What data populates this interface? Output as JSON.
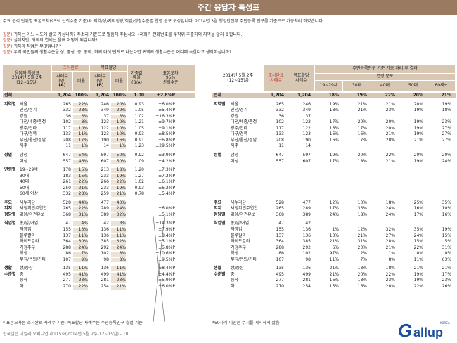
{
  "title": "주간 응답자 특성표",
  "intro": "주요 분석 단위별 표본오차(95% 신뢰수준 기준)와 지역/성/지지정당/직업/생활수준별 연령 분포 구성입니다. 2014년 3월 행정안전부 주민등록 인구를 기준으로 가중처리 하였습니다.",
  "questions": [
    {
      "label": "질문)",
      "text": "귀하는 어느 시도에 살고 계십니까? 주소지 기준으로 말씀해 주십시오. (저희가 전화번호를 무작위 추출하여 지역을 알지 못합니다.)"
    },
    {
      "label": "질문)",
      "text": "실례지만, 귀하의 연세는 올해 어떻게 되십니까?"
    },
    {
      "label": "질문)",
      "text": "귀하의 직업은 무엇입니까?"
    },
    {
      "label": "질문)",
      "text": "우리 국민들의 생활수준을 상, 중상, 중, 중하, 하의 다섯 단계로 나눈다면 귀댁의 생활수준은 어디에 속한다고 생각하십니까?"
    }
  ],
  "left_headers": {
    "group": "응답자 특성표",
    "period": "2014년 5월 2주",
    "dates": "(12~15일)",
    "s1": "조사완료",
    "s1a": "사례수",
    "s1b": "(명)",
    "s1c": "비율",
    "s2": "목표할당",
    "s2a": "사례수",
    "s2b": "(명)",
    "s2c": "비율",
    "s3": "가중값",
    "s3a": "배율",
    "s3b": "(B/A)",
    "s4": "표본오차",
    "s4a": "95%",
    "s4b": "신뢰수준"
  },
  "right_headers": {
    "period": "2014년 5월 2주",
    "dates": "(12~15일)",
    "s1": "조사완료",
    "s1a": "사례수",
    "s2": "목표할당",
    "s2a": "사례수",
    "s3": "주민등록인구 기준 가중 처리 후 결과",
    "s3b": "연령 분포",
    "ages": [
      "19~29세",
      "30대",
      "40대",
      "50대",
      "60세+"
    ]
  },
  "left_rows": [
    {
      "cat": "전체",
      "sub": "",
      "v": [
        "1,204",
        "100%",
        "1,204",
        "100%",
        "1.00",
        "±2.8%P"
      ],
      "tot": true
    },
    {
      "cat": "지역별",
      "sub": "서울",
      "v": [
        "265",
        "22%",
        "246",
        "20%",
        "0.93",
        "±6.0%P"
      ]
    },
    {
      "cat": "",
      "sub": "인천/경기",
      "v": [
        "332",
        "28%",
        "349",
        "29%",
        "1.05",
        "±5.4%P"
      ]
    },
    {
      "cat": "",
      "sub": "강원",
      "v": [
        "36",
        "3%",
        "37",
        "3%",
        "1.02",
        "±16.3%P"
      ]
    },
    {
      "cat": "",
      "sub": "대전/세종/충청",
      "v": [
        "102",
        "8%",
        "123",
        "10%",
        "1.21",
        "±9.7%P"
      ]
    },
    {
      "cat": "",
      "sub": "광주/전라",
      "v": [
        "117",
        "10%",
        "122",
        "10%",
        "1.05",
        "±9.1%P"
      ]
    },
    {
      "cat": "",
      "sub": "대구/경북",
      "v": [
        "133",
        "11%",
        "123",
        "10%",
        "0.93",
        "±8.5%P"
      ]
    },
    {
      "cat": "",
      "sub": "부산/울산/경남",
      "v": [
        "208",
        "17%",
        "190",
        "16%",
        "0.91",
        "±6.8%P"
      ]
    },
    {
      "cat": "",
      "sub": "제주",
      "v": [
        "11",
        "1%",
        "14",
        "1%",
        "1.23",
        "±29.5%P"
      ]
    },
    {
      "cat": "성별",
      "sub": "남성",
      "v": [
        "647",
        "54%",
        "597",
        "50%",
        "0.92",
        "±3.9%P"
      ]
    },
    {
      "cat": "",
      "sub": "여성",
      "v": [
        "557",
        "46%",
        "607",
        "50%",
        "1.09",
        "±4.2%P"
      ]
    },
    {
      "cat": "연령별",
      "sub": "19~29세",
      "v": [
        "178",
        "15%",
        "213",
        "18%",
        "1.20",
        "±7.3%P"
      ]
    },
    {
      "cat": "",
      "sub": "30대",
      "v": [
        "183",
        "15%",
        "233",
        "19%",
        "1.27",
        "±7.2%P"
      ]
    },
    {
      "cat": "",
      "sub": "40대",
      "v": [
        "261",
        "22%",
        "266",
        "22%",
        "1.02",
        "±6.1%P"
      ]
    },
    {
      "cat": "",
      "sub": "50대",
      "v": [
        "250",
        "21%",
        "233",
        "19%",
        "0.93",
        "±6.2%P"
      ]
    },
    {
      "cat": "",
      "sub": "60세 이상",
      "v": [
        "332",
        "28%",
        "259",
        "21%",
        "0.78",
        "±5.4%P"
      ]
    },
    {
      "cat": "주요",
      "sub": "새누리당",
      "v": [
        "528",
        "44%",
        "477",
        "40%",
        "",
        ""
      ]
    },
    {
      "cat": "지지",
      "sub": "새정치민주연합",
      "v": [
        "265",
        "22%",
        "289",
        "24%",
        "",
        "±6.0%P"
      ]
    },
    {
      "cat": "정당별",
      "sub": "없음/의견유보",
      "v": [
        "368",
        "31%",
        "389",
        "32%",
        "",
        "±5.1%P"
      ]
    },
    {
      "cat": "직업별",
      "sub": "농/임/어업",
      "v": [
        "47",
        "4%",
        "42",
        "3%",
        "",
        "±14.3%P"
      ]
    },
    {
      "cat": "",
      "sub": "자영업",
      "v": [
        "155",
        "13%",
        "136",
        "11%",
        "",
        "±7.9%P"
      ]
    },
    {
      "cat": "",
      "sub": "블루칼라",
      "v": [
        "137",
        "11%",
        "136",
        "11%",
        "",
        "±8.4%P"
      ]
    },
    {
      "cat": "",
      "sub": "화이트칼라",
      "v": [
        "364",
        "30%",
        "385",
        "32%",
        "",
        "±5.1%P"
      ]
    },
    {
      "cat": "",
      "sub": "가정주부",
      "v": [
        "288",
        "24%",
        "292",
        "24%",
        "",
        "±5.8%P"
      ]
    },
    {
      "cat": "",
      "sub": "학생",
      "v": [
        "86",
        "7%",
        "102",
        "8%",
        "",
        "±10.6%P"
      ]
    },
    {
      "cat": "",
      "sub": "무직/은퇴/기타",
      "v": [
        "107",
        "9%",
        "98",
        "8%",
        "",
        "±9.5%P"
      ]
    },
    {
      "cat": "생활",
      "sub": "상/중상",
      "v": [
        "135",
        "11%",
        "136",
        "11%",
        "",
        "±8.4%P"
      ]
    },
    {
      "cat": "수준별",
      "sub": "중",
      "v": [
        "495",
        "41%",
        "499",
        "41%",
        "",
        "±4.4%P"
      ]
    },
    {
      "cat": "",
      "sub": "중하",
      "v": [
        "277",
        "23%",
        "281",
        "23%",
        "",
        "±5.9%P"
      ]
    },
    {
      "cat": "",
      "sub": "하",
      "v": [
        "270",
        "22%",
        "254",
        "21%",
        "",
        "±6.0%P"
      ]
    }
  ],
  "right_rows": [
    {
      "cat": "전체",
      "sub": "",
      "v": [
        "1,204",
        "1,204",
        "18%",
        "19%",
        "22%",
        "20%",
        "21%"
      ],
      "tot": true
    },
    {
      "cat": "지역별",
      "sub": "서울",
      "v": [
        "265",
        "246",
        "19%",
        "21%",
        "21%",
        "20%",
        "19%"
      ]
    },
    {
      "cat": "",
      "sub": "인천/경기",
      "v": [
        "332",
        "349",
        "18%",
        "21%",
        "23%",
        "19%",
        "18%"
      ]
    },
    {
      "cat": "",
      "sub": "강원",
      "v": [
        "36",
        "37",
        "",
        "",
        "",
        "",
        ""
      ]
    },
    {
      "cat": "",
      "sub": "대전/세종/충청",
      "v": [
        "102",
        "123",
        "17%",
        "20%",
        "20%",
        "19%",
        "23%"
      ]
    },
    {
      "cat": "",
      "sub": "광주/전라",
      "v": [
        "117",
        "122",
        "16%",
        "17%",
        "20%",
        "19%",
        "27%"
      ]
    },
    {
      "cat": "",
      "sub": "대구/경북",
      "v": [
        "133",
        "123",
        "16%",
        "16%",
        "21%",
        "19%",
        "27%"
      ]
    },
    {
      "cat": "",
      "sub": "부산/울산/경남",
      "v": [
        "208",
        "190",
        "16%",
        "17%",
        "20%",
        "21%",
        "27%"
      ]
    },
    {
      "cat": "",
      "sub": "제주",
      "v": [
        "11",
        "14",
        "",
        "",
        "",
        "",
        ""
      ]
    },
    {
      "cat": "성별",
      "sub": "남성",
      "v": [
        "647",
        "597",
        "19%",
        "20%",
        "22%",
        "20%",
        "20%"
      ]
    },
    {
      "cat": "",
      "sub": "여성",
      "v": [
        "557",
        "607",
        "17%",
        "18%",
        "21%",
        "19%",
        "24%"
      ]
    },
    {
      "cat": "",
      "sub": "",
      "v": [
        "",
        "",
        "",
        "",
        "",
        "",
        ""
      ]
    },
    {
      "cat": "",
      "sub": "",
      "v": [
        "",
        "",
        "",
        "",
        "",
        "",
        ""
      ]
    },
    {
      "cat": "",
      "sub": "",
      "v": [
        "",
        "",
        "",
        "",
        "",
        "",
        ""
      ]
    },
    {
      "cat": "",
      "sub": "",
      "v": [
        "",
        "",
        "",
        "",
        "",
        "",
        ""
      ]
    },
    {
      "cat": "",
      "sub": "",
      "v": [
        "",
        "",
        "",
        "",
        "",
        "",
        ""
      ]
    },
    {
      "cat": "주요",
      "sub": "새누리당",
      "v": [
        "528",
        "477",
        "12%",
        "10%",
        "18%",
        "25%",
        "35%"
      ]
    },
    {
      "cat": "지지",
      "sub": "새정치민주연합",
      "v": [
        "265",
        "289",
        "17%",
        "33%",
        "24%",
        "16%",
        "10%"
      ]
    },
    {
      "cat": "정당별",
      "sub": "없음/의견유보",
      "v": [
        "368",
        "389",
        "24%",
        "18%",
        "24%",
        "17%",
        "16%"
      ]
    },
    {
      "cat": "직업별",
      "sub": "농/임/어업",
      "v": [
        "47",
        "42",
        "",
        "",
        "",
        "",
        ""
      ]
    },
    {
      "cat": "",
      "sub": "자영업",
      "v": [
        "155",
        "136",
        "1%",
        "12%",
        "32%",
        "35%",
        "19%"
      ]
    },
    {
      "cat": "",
      "sub": "블루칼라",
      "v": [
        "137",
        "136",
        "13%",
        "21%",
        "27%",
        "24%",
        "15%"
      ]
    },
    {
      "cat": "",
      "sub": "화이트칼라",
      "v": [
        "364",
        "385",
        "21%",
        "31%",
        "28%",
        "15%",
        "5%"
      ]
    },
    {
      "cat": "",
      "sub": "가정주부",
      "v": [
        "288",
        "292",
        "6%",
        "20%",
        "21%",
        "22%",
        "31%"
      ]
    },
    {
      "cat": "",
      "sub": "학생",
      "v": [
        "86",
        "102",
        "97%",
        "2%",
        "1%",
        "0%",
        "0%"
      ]
    },
    {
      "cat": "",
      "sub": "무직/은퇴/기타",
      "v": [
        "107",
        "98",
        "11%",
        "7%",
        "8%",
        "11%",
        "63%"
      ]
    },
    {
      "cat": "생활",
      "sub": "상/중상",
      "v": [
        "135",
        "136",
        "21%",
        "18%",
        "18%",
        "21%",
        "21%"
      ]
    },
    {
      "cat": "수준별",
      "sub": "중",
      "v": [
        "495",
        "499",
        "21%",
        "20%",
        "22%",
        "19%",
        "17%"
      ]
    },
    {
      "cat": "",
      "sub": "중하",
      "v": [
        "277",
        "281",
        "16%",
        "18%",
        "23%",
        "19%",
        "23%"
      ]
    },
    {
      "cat": "",
      "sub": "하",
      "v": [
        "270",
        "254",
        "15%",
        "16%",
        "20%",
        "22%",
        "26%"
      ]
    }
  ],
  "note_left": "* 표본오차는 조사완료 사례수 기준, 목표할당 사례수는 주민등록인구 월별 기준",
  "note_right": "*50사례 미만은 수치를 게시하지 않음",
  "footer": "한국갤럽 데일리 오피니언 제115호(2014년 5월 2주-12~15일) - 10",
  "logo": {
    "g": "G",
    "rest": "allup",
    "korea": "KOREA"
  }
}
